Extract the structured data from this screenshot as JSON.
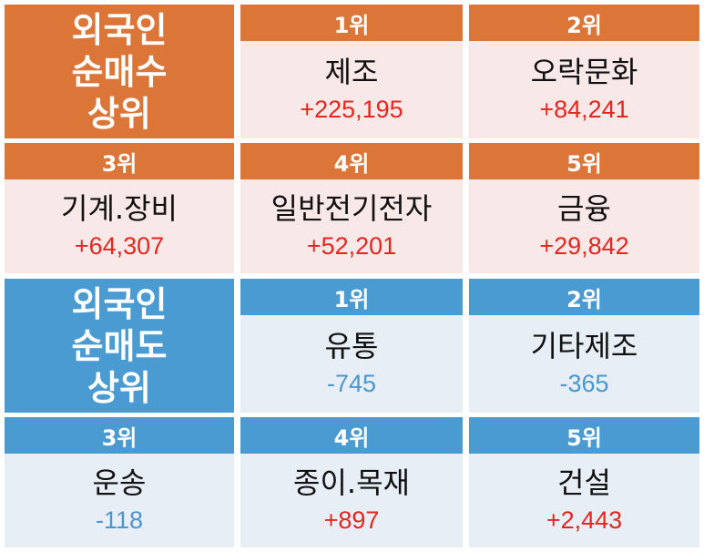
{
  "buy": {
    "title": "외국인\n순매수\n상위",
    "colors": {
      "header": "#db7538",
      "body": "#f8e8e7",
      "value": "#e4261f"
    },
    "items": [
      {
        "rank": "1위",
        "name": "제조",
        "value": "+225,195"
      },
      {
        "rank": "2위",
        "name": "오락문화",
        "value": "+84,241"
      },
      {
        "rank": "3위",
        "name": "기계.장비",
        "value": "+64,307"
      },
      {
        "rank": "4위",
        "name": "일반전기전자",
        "value": "+52,201"
      },
      {
        "rank": "5위",
        "name": "금융",
        "value": "+29,842"
      }
    ]
  },
  "sell": {
    "title": "외국인\n순매도\n상위",
    "colors": {
      "header": "#4a9bd2",
      "body": "#e8eef5",
      "negative_value": "#4a97cf",
      "positive_value": "#e4261f"
    },
    "items": [
      {
        "rank": "1위",
        "name": "유통",
        "value": "-745"
      },
      {
        "rank": "2위",
        "name": "기타제조",
        "value": "-365"
      },
      {
        "rank": "3위",
        "name": "운송",
        "value": "-118"
      },
      {
        "rank": "4위",
        "name": "종이.목재",
        "value": "+897"
      },
      {
        "rank": "5위",
        "name": "건설",
        "value": "+2,443"
      }
    ]
  }
}
